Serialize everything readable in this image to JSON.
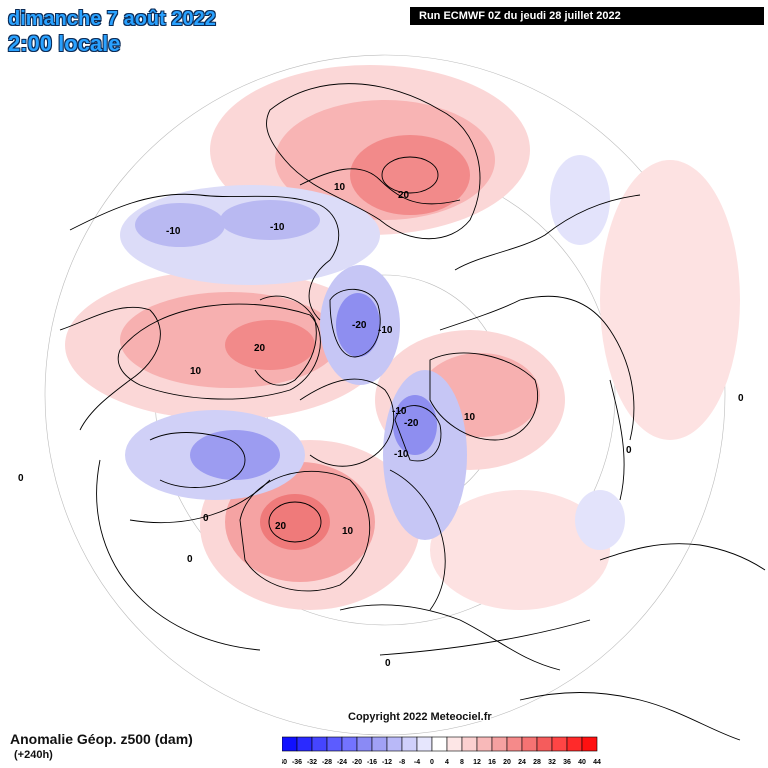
{
  "header": {
    "date": "dimanche 7 août 2022",
    "time": "2:00 locale",
    "run": "Run ECMWF 0Z du jeudi 28 juillet 2022"
  },
  "footer": {
    "copyright": "Copyright 2022 Meteociel.fr",
    "variable": "Anomalie Géop. z500 (dam)",
    "lead": "(+240h)"
  },
  "scale": {
    "values": [
      "-40",
      "-36",
      "-32",
      "-28",
      "-24",
      "-20",
      "-16",
      "-12",
      "-8",
      "-4",
      "0",
      "4",
      "8",
      "12",
      "16",
      "20",
      "24",
      "28",
      "32",
      "36",
      "40",
      "44"
    ],
    "colors": [
      "#1010ff",
      "#2a2aff",
      "#4545ff",
      "#5c5cff",
      "#7373ff",
      "#8a8af5",
      "#a1a1f5",
      "#b9b9f8",
      "#d0d0fb",
      "#e6e6fd",
      "#ffffff",
      "#fde6e6",
      "#fbd0d0",
      "#f8b9b9",
      "#f5a1a1",
      "#f58a8a",
      "#f57373",
      "#f55c5c",
      "#ff4545",
      "#ff2a2a",
      "#ff1010"
    ]
  },
  "contour_labels": [
    {
      "text": "20"
    },
    {
      "text": "10"
    },
    {
      "text": "-10"
    },
    {
      "text": "-10"
    },
    {
      "text": "-20"
    },
    {
      "text": "-10"
    },
    {
      "text": "20"
    },
    {
      "text": "10"
    },
    {
      "text": "-10"
    },
    {
      "text": "-20"
    },
    {
      "text": "-10"
    },
    {
      "text": "10"
    },
    {
      "text": "20"
    },
    {
      "text": "10"
    },
    {
      "text": "0"
    },
    {
      "text": "0"
    },
    {
      "text": "0"
    },
    {
      "text": "0"
    },
    {
      "text": "0"
    },
    {
      "text": "0"
    }
  ]
}
